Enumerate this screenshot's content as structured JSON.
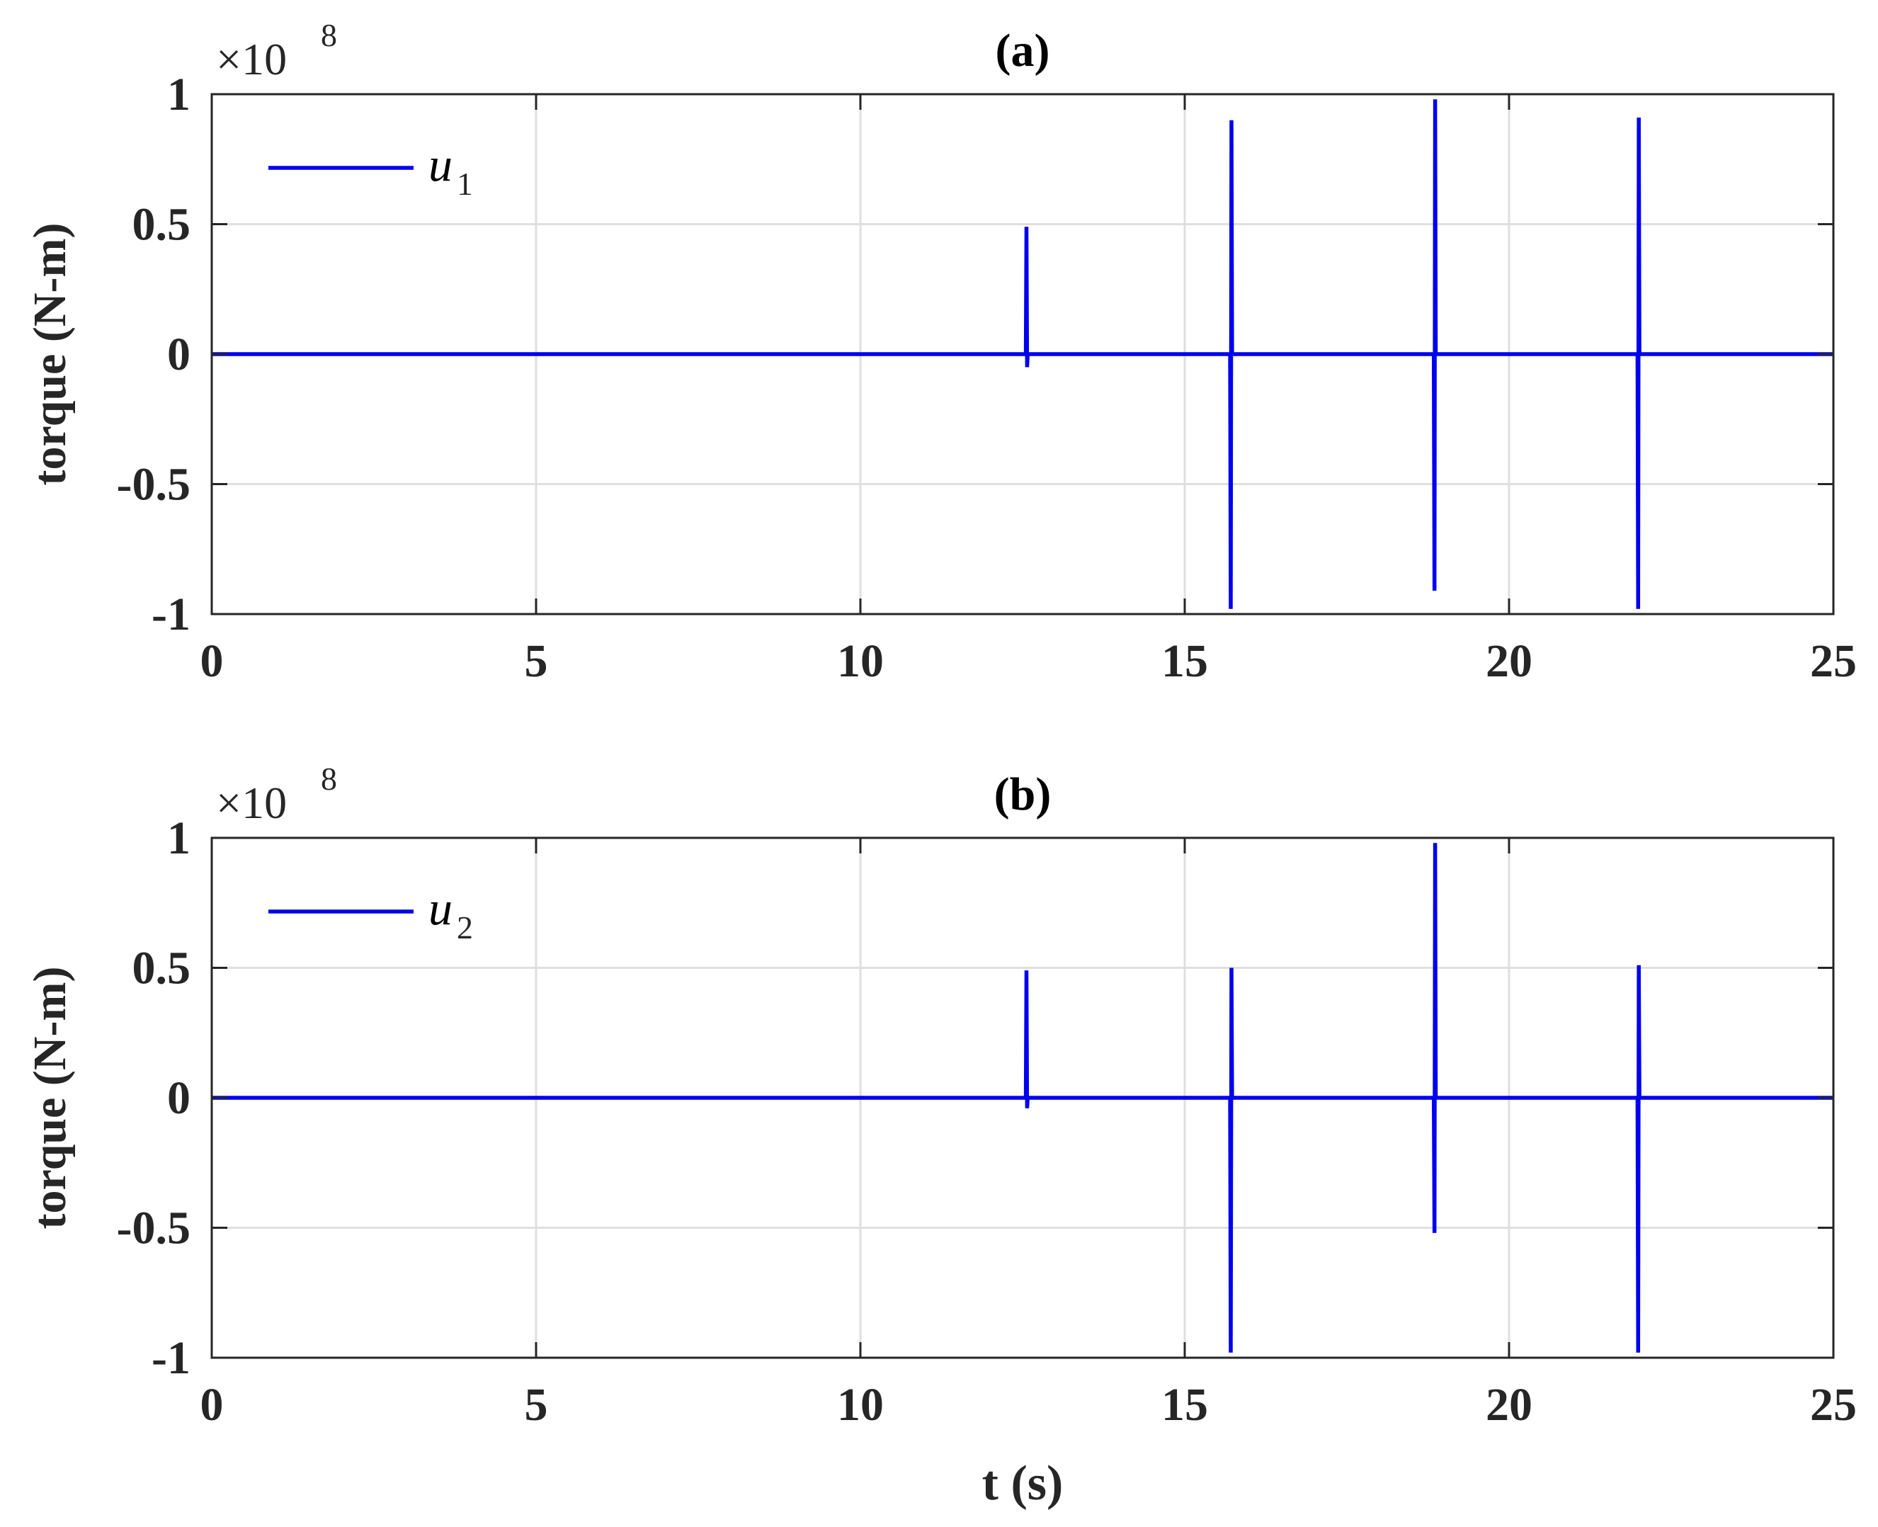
{
  "chart_data": [
    {
      "type": "line",
      "title": "(a)",
      "xlabel": "",
      "ylabel": "torque (N-m)",
      "xlim": [
        0,
        25
      ],
      "ylim": [
        -1,
        1
      ],
      "y_exponent": "×10",
      "y_exponent_power": "8",
      "xticks": [
        "0",
        "5",
        "10",
        "15",
        "20",
        "25"
      ],
      "yticks": [
        "1",
        "0.5",
        "0",
        "-0.5",
        "-1"
      ],
      "grid": true,
      "legend_position": "top-left",
      "series": [
        {
          "name": "u",
          "name_sub": "1",
          "color": "#0000ee",
          "x": [
            0,
            12.55,
            12.56,
            12.57,
            12.58,
            15.7,
            15.71,
            15.72,
            15.73,
            18.84,
            18.85,
            18.86,
            18.87,
            21.98,
            21.99,
            22.0,
            22.01,
            25
          ],
          "y": [
            0,
            0,
            0.49,
            -0.05,
            0,
            0,
            -0.98,
            0.9,
            0,
            0,
            -0.91,
            0.98,
            0,
            0,
            -0.98,
            0.91,
            0,
            0
          ]
        }
      ]
    },
    {
      "type": "line",
      "title": "(b)",
      "xlabel": "t (s)",
      "ylabel": "torque (N-m)",
      "xlim": [
        0,
        25
      ],
      "ylim": [
        -1,
        1
      ],
      "y_exponent": "×10",
      "y_exponent_power": "8",
      "xticks": [
        "0",
        "5",
        "10",
        "15",
        "20",
        "25"
      ],
      "yticks": [
        "1",
        "0.5",
        "0",
        "-0.5",
        "-1"
      ],
      "grid": true,
      "legend_position": "top-left",
      "series": [
        {
          "name": "u",
          "name_sub": "2",
          "color": "#0000ee",
          "x": [
            0,
            12.55,
            12.56,
            12.57,
            12.58,
            15.7,
            15.71,
            15.72,
            15.73,
            18.84,
            18.85,
            18.86,
            18.87,
            21.98,
            21.99,
            22.0,
            22.01,
            25
          ],
          "y": [
            0,
            0,
            0.49,
            -0.04,
            0,
            0,
            -0.98,
            0.5,
            0,
            0,
            -0.52,
            0.98,
            0,
            0,
            -0.98,
            0.51,
            0,
            0
          ]
        }
      ]
    }
  ]
}
